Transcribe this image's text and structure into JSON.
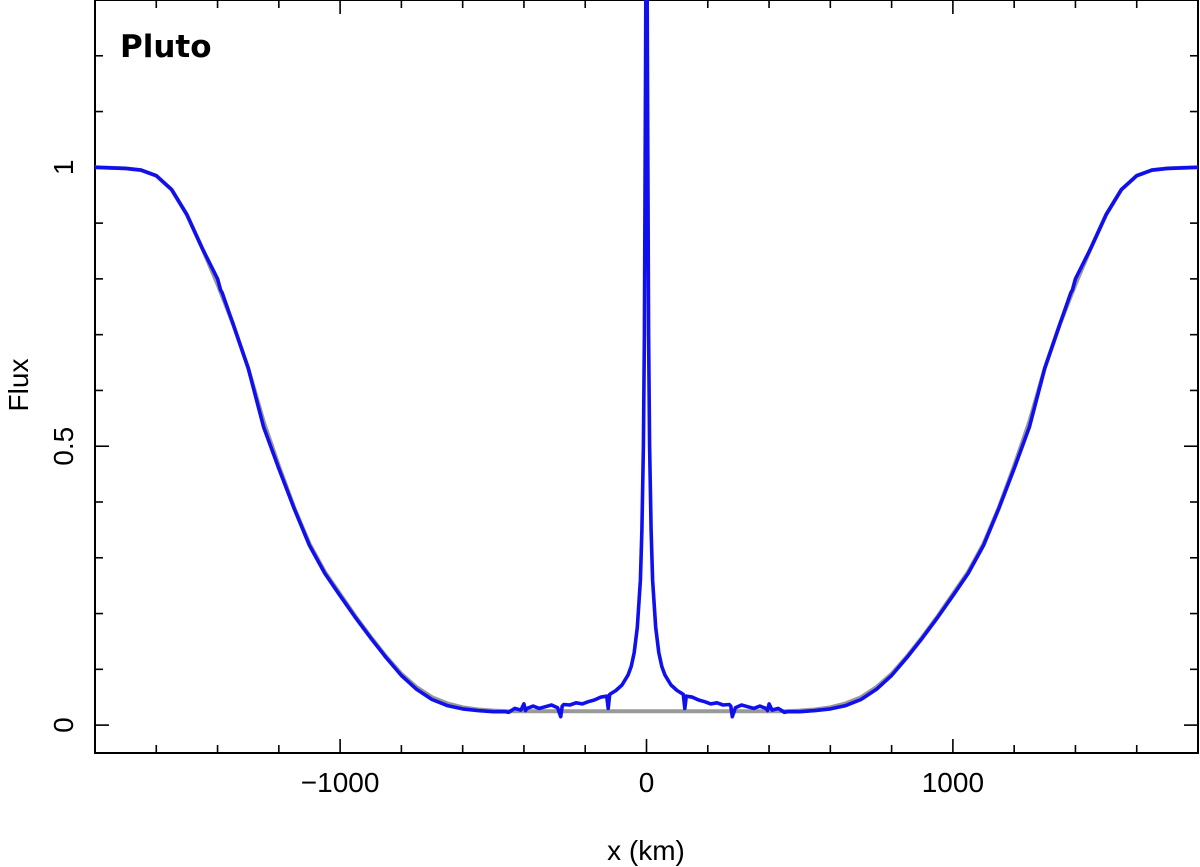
{
  "chart_data": {
    "type": "line",
    "title": "",
    "annotation": "Pluto",
    "xlabel": "x (km)",
    "ylabel": "Flux",
    "xlim": [
      -1800,
      1800
    ],
    "ylim": [
      -0.05,
      1.3
    ],
    "x_ticks": [
      -1000,
      0,
      1000
    ],
    "x_tick_labels": [
      "−1000",
      "0",
      "1000"
    ],
    "x_minor_ticks": [
      -1600,
      -1400,
      -1200,
      -800,
      -600,
      -400,
      -200,
      200,
      400,
      600,
      800,
      1200,
      1400,
      1600
    ],
    "y_ticks": [
      0,
      0.5,
      1
    ],
    "y_tick_labels": [
      "0",
      "0.5",
      "1"
    ],
    "y_minor_ticks": [
      0.1,
      0.2,
      0.3,
      0.4,
      0.6,
      0.7,
      0.8,
      0.9,
      1.1,
      1.2
    ],
    "grid": false,
    "legend": "none",
    "series": [
      {
        "color": "#999999",
        "x": [
          -1800,
          -1700,
          -1650,
          -1600,
          -1550,
          -1500,
          -1450,
          -1400,
          -1350,
          -1300,
          -1250,
          -1200,
          -1150,
          -1100,
          -1050,
          -1000,
          -950,
          -900,
          -850,
          -800,
          -750,
          -700,
          -650,
          -600,
          -550,
          -500,
          -450,
          450,
          500,
          550,
          600,
          650,
          700,
          750,
          800,
          850,
          900,
          950,
          1000,
          1050,
          1100,
          1150,
          1200,
          1250,
          1300,
          1350,
          1400,
          1450,
          1500,
          1550,
          1600,
          1650,
          1700,
          1800
        ],
        "y": [
          1.0,
          0.998,
          0.995,
          0.985,
          0.96,
          0.915,
          0.855,
          0.79,
          0.72,
          0.64,
          0.545,
          0.465,
          0.39,
          0.325,
          0.275,
          0.235,
          0.195,
          0.158,
          0.123,
          0.092,
          0.068,
          0.05,
          0.039,
          0.032,
          0.028,
          0.026,
          0.025,
          0.025,
          0.026,
          0.028,
          0.032,
          0.039,
          0.05,
          0.068,
          0.092,
          0.123,
          0.158,
          0.195,
          0.235,
          0.275,
          0.325,
          0.39,
          0.465,
          0.545,
          0.64,
          0.72,
          0.79,
          0.855,
          0.915,
          0.96,
          0.985,
          0.995,
          0.998,
          1.0
        ]
      },
      {
        "color": "#1010ee",
        "x": [
          -1800,
          -1700,
          -1650,
          -1600,
          -1550,
          -1500,
          -1450,
          -1400,
          -1390,
          -1385,
          -1350,
          -1300,
          -1250,
          -1200,
          -1150,
          -1100,
          -1050,
          -1000,
          -950,
          -900,
          -850,
          -800,
          -750,
          -700,
          -650,
          -600,
          -550,
          -500,
          -460,
          -450,
          -430,
          -410,
          -400,
          -395,
          -390,
          -370,
          -350,
          -330,
          -310,
          -290,
          -280,
          -275,
          -270,
          -250,
          -230,
          -210,
          -190,
          -170,
          -150,
          -130,
          -125,
          -120,
          -100,
          -80,
          -60,
          -50,
          -40,
          -30,
          -20,
          -15,
          -10,
          -7,
          -5,
          -3,
          -2,
          -1,
          0,
          1,
          2,
          3,
          5,
          7,
          10,
          15,
          20,
          30,
          40,
          50,
          60,
          80,
          100,
          120,
          125,
          130,
          150,
          170,
          190,
          210,
          230,
          250,
          270,
          275,
          280,
          290,
          310,
          330,
          350,
          370,
          390,
          395,
          400,
          410,
          430,
          450,
          460,
          500,
          550,
          600,
          650,
          700,
          750,
          800,
          850,
          900,
          950,
          1000,
          1050,
          1100,
          1150,
          1200,
          1250,
          1300,
          1350,
          1385,
          1390,
          1400,
          1450,
          1500,
          1550,
          1600,
          1650,
          1700,
          1800
        ],
        "y": [
          1.0,
          0.998,
          0.995,
          0.985,
          0.96,
          0.915,
          0.855,
          0.8,
          0.78,
          0.775,
          0.72,
          0.64,
          0.535,
          0.46,
          0.388,
          0.322,
          0.272,
          0.232,
          0.193,
          0.156,
          0.121,
          0.089,
          0.064,
          0.046,
          0.035,
          0.029,
          0.026,
          0.024,
          0.024,
          0.023,
          0.03,
          0.027,
          0.038,
          0.026,
          0.03,
          0.034,
          0.03,
          0.033,
          0.036,
          0.031,
          0.015,
          0.034,
          0.037,
          0.036,
          0.04,
          0.038,
          0.042,
          0.045,
          0.05,
          0.052,
          0.03,
          0.055,
          0.062,
          0.072,
          0.09,
          0.105,
          0.13,
          0.175,
          0.26,
          0.35,
          0.5,
          0.7,
          0.95,
          1.2,
          1.35,
          1.4,
          1.4,
          1.4,
          1.35,
          1.2,
          0.95,
          0.7,
          0.5,
          0.35,
          0.26,
          0.175,
          0.13,
          0.105,
          0.09,
          0.072,
          0.062,
          0.055,
          0.03,
          0.052,
          0.05,
          0.045,
          0.042,
          0.038,
          0.04,
          0.036,
          0.037,
          0.034,
          0.015,
          0.031,
          0.036,
          0.033,
          0.03,
          0.034,
          0.03,
          0.026,
          0.038,
          0.027,
          0.03,
          0.023,
          0.024,
          0.024,
          0.026,
          0.029,
          0.035,
          0.046,
          0.064,
          0.089,
          0.121,
          0.156,
          0.193,
          0.232,
          0.272,
          0.322,
          0.388,
          0.46,
          0.535,
          0.64,
          0.72,
          0.775,
          0.78,
          0.8,
          0.855,
          0.915,
          0.96,
          0.985,
          0.995,
          0.998,
          1.0
        ]
      }
    ]
  }
}
